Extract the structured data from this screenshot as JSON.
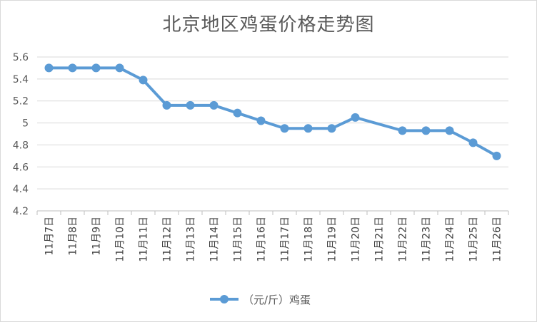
{
  "chart_data": {
    "type": "line",
    "title": "北京地区鸡蛋价格走势图",
    "categories": [
      "11月7日",
      "11月8日",
      "11月9日",
      "11月10日",
      "11月11日",
      "11月12日",
      "11月13日",
      "11月14日",
      "11月15日",
      "11月16日",
      "11月17日",
      "11月18日",
      "11月19日",
      "11月20日",
      "11月21日",
      "11月22日",
      "11月23日",
      "11月24日",
      "11月25日",
      "11月26日"
    ],
    "series": [
      {
        "name": "（元/斤）鸡蛋",
        "color": "#5b9bd5",
        "values": [
          5.5,
          5.5,
          5.5,
          5.5,
          5.39,
          5.16,
          5.16,
          5.16,
          5.09,
          5.02,
          4.95,
          4.95,
          4.95,
          5.05,
          null,
          4.93,
          4.93,
          4.93,
          4.82,
          4.7
        ]
      }
    ],
    "ylim": [
      4.2,
      5.6
    ],
    "yticks": [
      "4.2",
      "4.4",
      "4.6",
      "4.8",
      "5",
      "5.2",
      "5.4",
      "5.6"
    ],
    "grid": true,
    "legend_position": "bottom"
  }
}
